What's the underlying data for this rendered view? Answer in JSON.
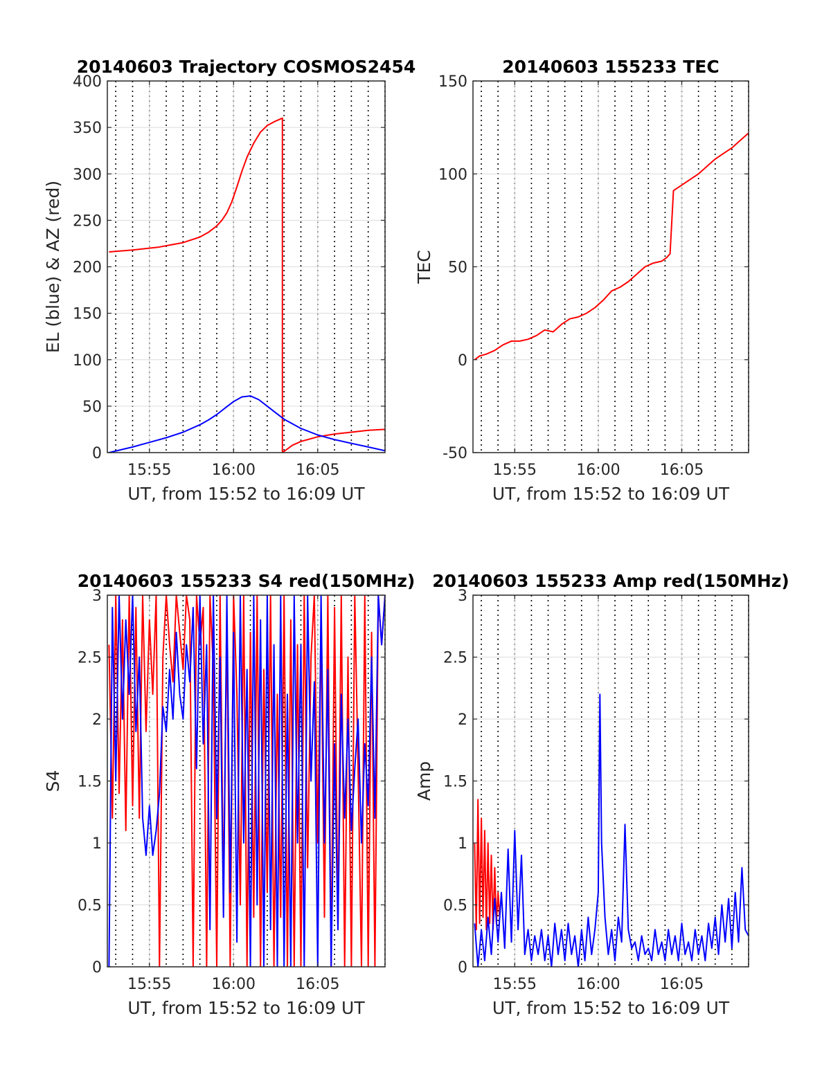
{
  "figure": {
    "background": "#ffffff",
    "line_red": "#ff0000",
    "line_blue": "#0000ff",
    "grid": "dotted"
  },
  "chart_data": [
    {
      "id": "trajectory",
      "type": "line",
      "title": "20140603 Trajectory COSMOS2454",
      "xlabel": "UT, from 15:52 to 16:09 UT",
      "ylabel": "EL (blue) & AZ (red)",
      "xlim": [
        952.5,
        969.0
      ],
      "ylim": [
        0,
        400
      ],
      "xticks": [
        955,
        960,
        965
      ],
      "xticklabels": [
        "15:55",
        "16:00",
        "16:05"
      ],
      "yticks": [
        0,
        50,
        100,
        150,
        200,
        250,
        300,
        350,
        400
      ],
      "yticklabels": [
        "0",
        "50",
        "100",
        "150",
        "200",
        "250",
        "300",
        "350",
        "400"
      ],
      "grid": true,
      "series": [
        {
          "color": "#ff0000",
          "x": [
            952.6,
            954.0,
            955.5,
            957.0,
            958.0,
            958.5,
            959.0,
            959.3,
            959.6,
            959.9,
            960.2,
            960.5,
            960.8,
            961.2,
            961.6,
            962.0,
            962.4,
            962.9,
            962.9,
            963.5,
            964.0,
            965.0,
            966.0,
            967.0,
            968.0,
            969.0
          ],
          "y": [
            216,
            218,
            221,
            226,
            232,
            237,
            244,
            250,
            258,
            270,
            286,
            303,
            318,
            333,
            345,
            352,
            356,
            360,
            0,
            8,
            12,
            17,
            20,
            22,
            24,
            25
          ]
        },
        {
          "color": "#0000ff",
          "x": [
            952.6,
            954.0,
            955.0,
            956.0,
            957.0,
            958.0,
            958.5,
            959.0,
            959.5,
            960.0,
            960.5,
            961.0,
            961.5,
            962.0,
            962.5,
            963.0,
            963.5,
            964.0,
            965.0,
            966.0,
            967.0,
            968.0,
            969.0
          ],
          "y": [
            0,
            6,
            11,
            16,
            22,
            30,
            35,
            41,
            48,
            55,
            60,
            61,
            57,
            50,
            43,
            36,
            31,
            26,
            19,
            14,
            10,
            6,
            2
          ]
        }
      ]
    },
    {
      "id": "tec",
      "type": "line",
      "title": "20140603 155233 TEC",
      "xlabel": "UT, from 15:52 to 16:09 UT",
      "ylabel": "TEC",
      "xlim": [
        952.5,
        969.0
      ],
      "ylim": [
        -50,
        150
      ],
      "xticks": [
        955,
        960,
        965
      ],
      "xticklabels": [
        "15:55",
        "16:00",
        "16:05"
      ],
      "yticks": [
        -50,
        0,
        50,
        100,
        150
      ],
      "yticklabels": [
        "-50",
        "0",
        "50",
        "100",
        "150"
      ],
      "grid": true,
      "series": [
        {
          "color": "#ff0000",
          "x": [
            952.6,
            952.9,
            953.3,
            953.8,
            954.3,
            954.8,
            955.3,
            955.8,
            956.3,
            956.8,
            957.3,
            957.8,
            958.3,
            958.8,
            959.3,
            959.8,
            960.3,
            960.8,
            961.3,
            961.8,
            962.3,
            962.8,
            963.3,
            963.8,
            964.1,
            964.3,
            964.5,
            965.0,
            965.5,
            966.0,
            966.5,
            967.0,
            967.5,
            968.0,
            968.5,
            969.0
          ],
          "y": [
            0,
            2,
            3,
            5,
            8,
            10,
            10,
            11,
            13,
            16,
            15,
            19,
            22,
            23,
            25,
            28,
            32,
            37,
            39,
            42,
            46,
            50,
            52,
            53,
            55,
            57,
            91,
            94,
            97,
            100,
            104,
            108,
            111,
            114,
            118,
            122
          ]
        }
      ]
    },
    {
      "id": "s4",
      "type": "line",
      "title": "20140603 155233 S4 red(150MHz)",
      "xlabel": "UT, from 15:52 to 16:09 UT",
      "ylabel": "S4",
      "xlim": [
        952.5,
        969.0
      ],
      "ylim": [
        0,
        3
      ],
      "xticks": [
        955,
        960,
        965
      ],
      "xticklabels": [
        "15:55",
        "16:00",
        "16:05"
      ],
      "yticks": [
        0,
        0.5,
        1,
        1.5,
        2,
        2.5,
        3
      ],
      "yticklabels": [
        "0",
        "0.5",
        "1",
        "1.5",
        "2",
        "2.5",
        "3"
      ],
      "grid": true,
      "series": [
        {
          "color": "#ff0000",
          "x": [
            952.6,
            952.8,
            953.0,
            953.2,
            953.4,
            953.6,
            953.8,
            954.0,
            954.2,
            954.4,
            954.6,
            954.8,
            955.0,
            955.2,
            955.4,
            955.6,
            955.8,
            956.0,
            956.2,
            956.4,
            956.6,
            956.8,
            957.0,
            957.2,
            957.4,
            957.6,
            957.8,
            958.0,
            958.2,
            958.4,
            958.6,
            958.8,
            959.0,
            959.2,
            959.4,
            959.6,
            959.8,
            960.0,
            960.2,
            960.4,
            960.6,
            960.8,
            961.0,
            961.2,
            961.4,
            961.6,
            961.8,
            962.0,
            962.2,
            962.4,
            962.6,
            962.8,
            963.0,
            963.2,
            963.4,
            963.6,
            963.8,
            964.0,
            964.2,
            964.4,
            964.6,
            964.8,
            965.0,
            965.2,
            965.4,
            965.6,
            965.8,
            966.0,
            966.2,
            966.4,
            966.6,
            966.8,
            967.0,
            967.2,
            967.4,
            967.6,
            967.8,
            968.0,
            968.2,
            968.4,
            968.6,
            968.8,
            969.0
          ],
          "y": [
            2.6,
            1.2,
            3.0,
            1.4,
            2.8,
            1.1,
            3.0,
            1.3,
            2.9,
            1.2,
            3.0,
            1.9,
            2.8,
            2.2,
            3.0,
            0.0,
            2.5,
            3.0,
            2.6,
            2.3,
            3.0,
            2.7,
            2.4,
            3.0,
            2.8,
            0.0,
            3.0,
            2.6,
            2.9,
            0.0,
            3.0,
            2.4,
            0.0,
            3.0,
            0.6,
            2.8,
            0.0,
            3.0,
            2.2,
            0.5,
            3.0,
            0.0,
            2.7,
            0.4,
            3.0,
            0.0,
            2.4,
            0.6,
            3.0,
            0.0,
            2.2,
            0.4,
            3.0,
            0.0,
            2.8,
            0.0,
            2.6,
            0.0,
            3.0,
            0.8,
            2.5,
            3.0,
            1.0,
            2.8,
            0.4,
            3.0,
            0.0,
            2.9,
            0.3,
            3.0,
            0.0,
            2.5,
            0.0,
            3.0,
            1.6,
            0.0,
            3.0,
            0.0,
            2.7,
            0.0,
            3.0,
            2.6,
            3.0
          ]
        },
        {
          "color": "#0000ff",
          "x": [
            952.6,
            952.8,
            953.0,
            953.2,
            953.4,
            953.6,
            953.8,
            954.0,
            954.2,
            954.4,
            954.6,
            954.8,
            955.0,
            955.2,
            955.4,
            955.6,
            955.8,
            956.0,
            956.2,
            956.4,
            956.6,
            956.8,
            957.0,
            957.2,
            957.4,
            957.6,
            957.8,
            958.0,
            958.2,
            958.4,
            958.6,
            958.8,
            959.0,
            959.2,
            959.4,
            959.6,
            959.8,
            960.0,
            960.2,
            960.4,
            960.6,
            960.8,
            961.0,
            961.2,
            961.4,
            961.6,
            961.8,
            962.0,
            962.2,
            962.4,
            962.6,
            962.8,
            963.0,
            963.2,
            963.4,
            963.6,
            963.8,
            964.0,
            964.2,
            964.4,
            964.6,
            964.8,
            965.0,
            965.2,
            965.4,
            965.6,
            965.8,
            966.0,
            966.2,
            966.4,
            966.6,
            966.8,
            967.0,
            967.2,
            967.4,
            967.6,
            967.8,
            968.0,
            968.2,
            968.4,
            968.6,
            968.8,
            969.0
          ],
          "y": [
            0.0,
            2.9,
            1.5,
            3.0,
            2.0,
            2.8,
            2.2,
            3.0,
            1.9,
            2.5,
            1.2,
            0.9,
            1.3,
            0.9,
            1.1,
            1.4,
            2.1,
            1.9,
            2.4,
            2.0,
            2.7,
            2.2,
            2.0,
            2.6,
            2.3,
            2.9,
            1.6,
            3.0,
            1.8,
            2.6,
            0.3,
            3.0,
            1.2,
            2.5,
            0.4,
            3.0,
            0.6,
            2.7,
            0.2,
            3.0,
            1.0,
            2.4,
            0.0,
            3.0,
            0.5,
            2.8,
            0.0,
            3.0,
            0.3,
            2.6,
            0.0,
            3.0,
            0.0,
            2.2,
            0.0,
            3.0,
            1.0,
            2.6,
            0.0,
            3.0,
            1.5,
            2.3,
            0.0,
            3.0,
            1.0,
            2.4,
            0.0,
            1.8,
            0.3,
            2.2,
            1.2,
            2.0,
            1.1,
            1.6,
            2.0,
            1.0,
            1.8,
            1.3,
            2.5,
            1.2,
            3.0,
            2.6,
            3.0
          ]
        }
      ]
    },
    {
      "id": "amp",
      "type": "line",
      "title": "20140603 155233 Amp red(150MHz)",
      "xlabel": "UT, from 15:52 to 16:09 UT",
      "ylabel": "Amp",
      "xlim": [
        952.5,
        969.0
      ],
      "ylim": [
        0,
        3
      ],
      "xticks": [
        955,
        960,
        965
      ],
      "xticklabels": [
        "15:55",
        "16:00",
        "16:05"
      ],
      "yticks": [
        0,
        0.5,
        1,
        1.5,
        2,
        2.5,
        3
      ],
      "yticklabels": [
        "0",
        "0.5",
        "1",
        "1.5",
        "2",
        "2.5",
        "3"
      ],
      "grid": true,
      "series": [
        {
          "color": "#ff0000",
          "x": [
            952.6,
            952.7,
            952.8,
            952.9,
            953.0,
            953.1,
            953.2,
            953.3,
            953.4,
            953.5,
            953.6,
            953.7,
            953.8,
            953.9,
            954.0,
            954.1
          ],
          "y": [
            1.0,
            0.3,
            1.35,
            0.35,
            1.2,
            0.4,
            1.1,
            0.3,
            1.0,
            0.35,
            0.9,
            0.3,
            0.8,
            0.35,
            0.6,
            0.4
          ]
        },
        {
          "color": "#0000ff",
          "x": [
            952.6,
            952.8,
            953.0,
            953.2,
            953.4,
            953.6,
            953.8,
            954.0,
            954.2,
            954.4,
            954.6,
            954.8,
            955.0,
            955.2,
            955.4,
            955.6,
            955.8,
            956.0,
            956.2,
            956.4,
            956.6,
            956.8,
            957.0,
            957.2,
            957.4,
            957.6,
            957.8,
            958.0,
            958.2,
            958.4,
            958.6,
            958.8,
            959.0,
            959.2,
            959.4,
            959.6,
            959.8,
            960.0,
            960.1,
            960.2,
            960.4,
            960.6,
            960.8,
            961.0,
            961.2,
            961.4,
            961.6,
            961.8,
            962.0,
            962.2,
            962.4,
            962.6,
            962.8,
            963.0,
            963.2,
            963.4,
            963.6,
            963.8,
            964.0,
            964.2,
            964.4,
            964.6,
            964.8,
            965.0,
            965.2,
            965.4,
            965.6,
            965.8,
            966.0,
            966.2,
            966.4,
            966.6,
            966.8,
            967.0,
            967.2,
            967.4,
            967.6,
            967.8,
            968.0,
            968.2,
            968.4,
            968.6,
            968.8,
            969.0
          ],
          "y": [
            0.35,
            0.0,
            0.3,
            0.05,
            0.4,
            0.1,
            0.55,
            0.2,
            0.6,
            0.15,
            0.95,
            0.2,
            1.1,
            0.3,
            0.9,
            0.1,
            0.3,
            0.05,
            0.25,
            0.1,
            0.3,
            0.05,
            0.25,
            0.0,
            0.35,
            0.1,
            0.3,
            0.05,
            0.35,
            0.1,
            0.25,
            0.0,
            0.3,
            0.05,
            0.4,
            0.1,
            0.3,
            0.6,
            2.2,
            1.0,
            0.4,
            0.1,
            0.3,
            0.05,
            0.4,
            0.2,
            1.15,
            0.3,
            0.15,
            0.2,
            0.05,
            0.25,
            0.1,
            0.15,
            0.05,
            0.3,
            0.1,
            0.2,
            0.05,
            0.3,
            0.1,
            0.25,
            0.05,
            0.35,
            0.1,
            0.2,
            0.05,
            0.3,
            0.1,
            0.25,
            0.05,
            0.35,
            0.15,
            0.4,
            0.1,
            0.5,
            0.2,
            0.55,
            0.15,
            0.6,
            0.2,
            0.8,
            0.3,
            0.25
          ]
        }
      ]
    }
  ]
}
